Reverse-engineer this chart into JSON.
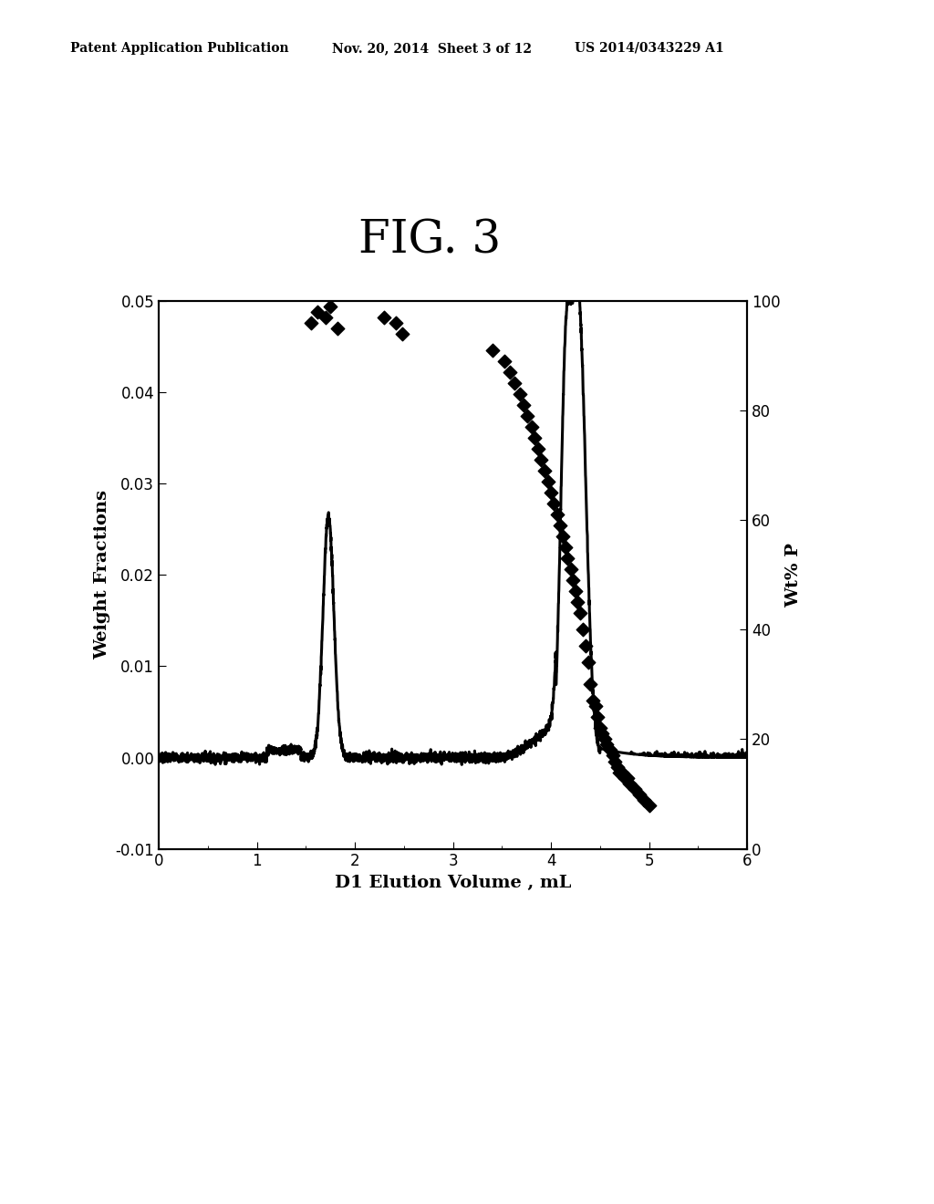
{
  "title": "FIG. 3",
  "xlabel": "D1 Elution Volume , mL",
  "ylabel_left": "Weight Fractions",
  "ylabel_right": "Wt% P",
  "xlim": [
    0,
    6
  ],
  "ylim_left": [
    -0.01,
    0.05
  ],
  "ylim_right": [
    0,
    100
  ],
  "xticks": [
    0,
    1,
    2,
    3,
    4,
    5,
    6
  ],
  "yticks_left": [
    -0.01,
    0,
    0.01,
    0.02,
    0.03,
    0.04,
    0.05
  ],
  "yticks_right": [
    0,
    20,
    40,
    60,
    80,
    100
  ],
  "header_left": "Patent Application Publication",
  "header_mid": "Nov. 20, 2014  Sheet 3 of 12",
  "header_right": "US 2014/0343229 A1",
  "background_color": "#ffffff",
  "line_color": "#000000",
  "scatter_color": "#000000",
  "line_width": 2.2,
  "fig_title_fontsize": 36,
  "axis_label_fontsize": 14,
  "tick_label_fontsize": 12,
  "header_fontsize": 10,
  "scatter_size": 55,
  "scatter_x": [
    1.55,
    1.62,
    1.7,
    1.75,
    1.82,
    2.3,
    2.42,
    2.48,
    3.4,
    3.52,
    3.58,
    3.63,
    3.68,
    3.72,
    3.76,
    3.8,
    3.83,
    3.87,
    3.9,
    3.93,
    3.97,
    4.0,
    4.03,
    4.06,
    4.09,
    4.12,
    4.15,
    4.17,
    4.2,
    4.22,
    4.25,
    4.27,
    4.3,
    4.32,
    4.35,
    4.38,
    4.4,
    4.43,
    4.45,
    4.47,
    4.5,
    4.52,
    4.55,
    4.57,
    4.6,
    4.63,
    4.65,
    4.68,
    4.7,
    4.72,
    4.75,
    4.78,
    4.8,
    4.85,
    4.9,
    4.95,
    5.0
  ],
  "scatter_wt": [
    96,
    98,
    97,
    99,
    95,
    97,
    96,
    94,
    91,
    89,
    87,
    85,
    83,
    81,
    79,
    77,
    75,
    73,
    71,
    69,
    67,
    65,
    63,
    61,
    59,
    57,
    55,
    53,
    51,
    49,
    47,
    45,
    43,
    40,
    37,
    34,
    30,
    27,
    26,
    24,
    22,
    21,
    20,
    19,
    18,
    17,
    16,
    15,
    14,
    14,
    13,
    13,
    12,
    11,
    10,
    9,
    8
  ]
}
